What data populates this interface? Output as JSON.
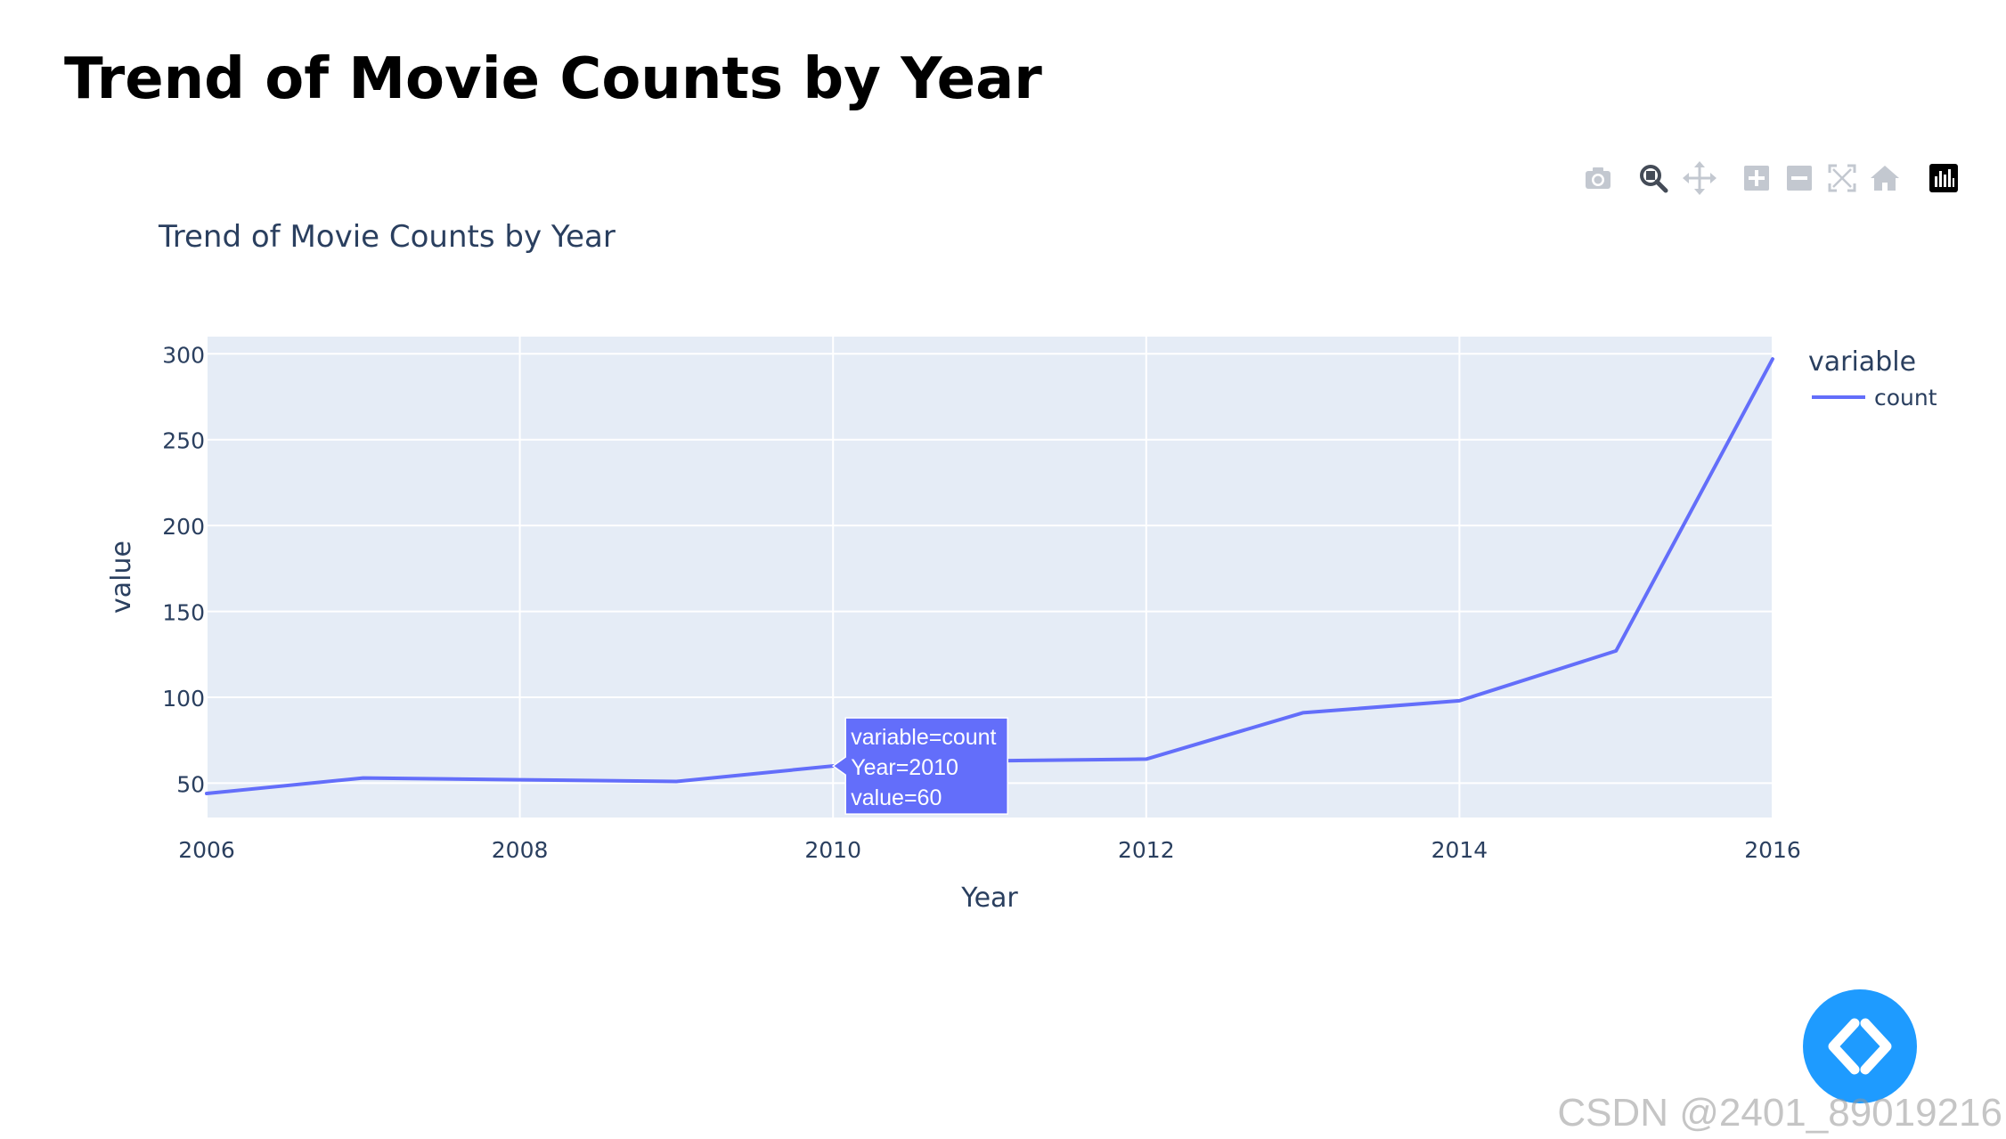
{
  "page": {
    "heading": "Trend of Movie Counts by Year",
    "watermark": "CSDN @2401_89019216"
  },
  "modebar": {
    "buttons": [
      {
        "name": "camera-icon",
        "active": false
      },
      {
        "name": "zoom-icon",
        "active": true
      },
      {
        "name": "pan-icon",
        "active": false
      },
      {
        "name": "zoom-in-icon",
        "active": false
      },
      {
        "name": "zoom-out-icon",
        "active": false
      },
      {
        "name": "autoscale-icon",
        "active": false
      },
      {
        "name": "reset-axes-icon",
        "active": false
      },
      {
        "name": "plotly-logo-icon",
        "active": false
      }
    ]
  },
  "colors": {
    "line": "#636efa",
    "plot_bg": "#e5ecf6",
    "grid": "#ffffff",
    "text": "#2a3f5f",
    "fab": "#1e9bff"
  },
  "chart_data": {
    "type": "line",
    "title": "Trend of Movie Counts by Year",
    "xlabel": "Year",
    "ylabel": "value",
    "xlim": [
      2006,
      2016
    ],
    "ylim": [
      30,
      310
    ],
    "x_ticks": [
      2006,
      2008,
      2010,
      2012,
      2014,
      2016
    ],
    "y_ticks": [
      50,
      100,
      150,
      200,
      250,
      300
    ],
    "grid": true,
    "legend": {
      "title": "variable",
      "placement": "top-right",
      "entries": [
        "count"
      ]
    },
    "series": [
      {
        "name": "count",
        "x": [
          2006,
          2007,
          2008,
          2009,
          2010,
          2011,
          2012,
          2013,
          2014,
          2015,
          2016
        ],
        "values": [
          44,
          53,
          52,
          51,
          60,
          63,
          64,
          91,
          98,
          127,
          297
        ]
      }
    ],
    "hover": {
      "series_index": 0,
      "point_index": 4,
      "lines": [
        "variable=count",
        "Year=2010",
        "value=60"
      ]
    }
  }
}
